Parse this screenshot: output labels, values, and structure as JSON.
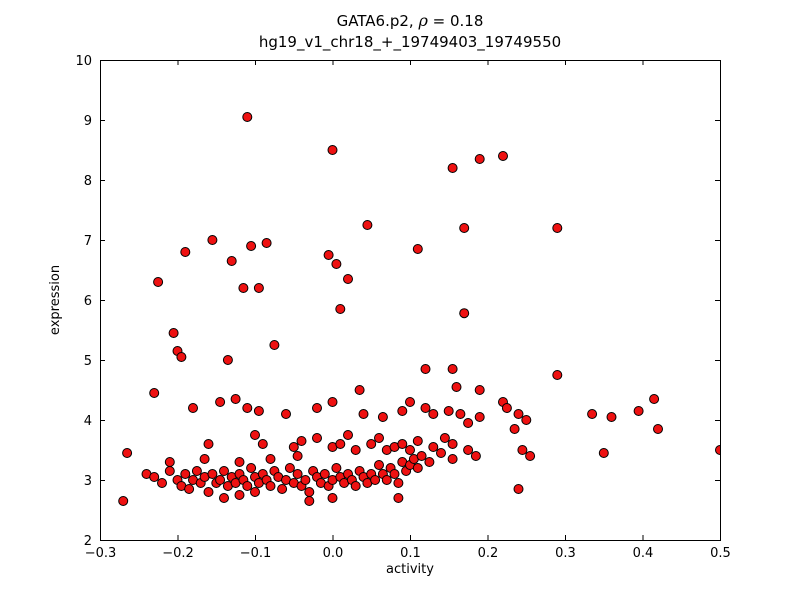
{
  "figure": {
    "background": "#ffffff",
    "axes_edge_color": "#000000"
  },
  "chart_data": {
    "type": "scatter",
    "title": "GATA6.p2, ρ = 0.18",
    "subtitle": "hg19_v1_chr18_+_19749403_19749550",
    "title_parts": {
      "prefix": "GATA6.p2, ",
      "rho": "ρ",
      "suffix": " = 0.18"
    },
    "xlabel": "activity",
    "ylabel": "expression",
    "xlim": [
      -0.3,
      0.5
    ],
    "ylim": [
      2,
      10
    ],
    "xticks": [
      -0.3,
      -0.2,
      -0.1,
      0.0,
      0.1,
      0.2,
      0.3,
      0.4,
      0.5
    ],
    "xtick_labels": [
      "−0.3",
      "−0.2",
      "−0.1",
      "0.0",
      "0.1",
      "0.2",
      "0.3",
      "0.4",
      "0.5"
    ],
    "yticks": [
      2,
      3,
      4,
      5,
      6,
      7,
      8,
      9,
      10
    ],
    "ytick_labels": [
      "2",
      "3",
      "4",
      "5",
      "6",
      "7",
      "8",
      "9",
      "10"
    ],
    "grid": false,
    "legend": null,
    "marker": {
      "shape": "circle",
      "fill": "#ee1111",
      "edge": "#000000",
      "radius": 4.5
    },
    "points": [
      [
        -0.11,
        9.05
      ],
      [
        0.0,
        8.5
      ],
      [
        0.155,
        8.2
      ],
      [
        0.19,
        8.35
      ],
      [
        0.22,
        8.4
      ],
      [
        0.045,
        7.25
      ],
      [
        0.17,
        7.2
      ],
      [
        0.29,
        7.2
      ],
      [
        -0.155,
        7.0
      ],
      [
        -0.085,
        6.95
      ],
      [
        -0.105,
        6.9
      ],
      [
        0.11,
        6.85
      ],
      [
        -0.19,
        6.8
      ],
      [
        -0.005,
        6.75
      ],
      [
        0.005,
        6.6
      ],
      [
        -0.13,
        6.65
      ],
      [
        0.02,
        6.35
      ],
      [
        -0.225,
        6.3
      ],
      [
        -0.115,
        6.2
      ],
      [
        -0.095,
        6.2
      ],
      [
        0.01,
        5.85
      ],
      [
        0.17,
        5.78
      ],
      [
        -0.205,
        5.45
      ],
      [
        -0.075,
        5.25
      ],
      [
        -0.2,
        5.15
      ],
      [
        -0.195,
        5.05
      ],
      [
        -0.135,
        5.0
      ],
      [
        0.12,
        4.85
      ],
      [
        0.155,
        4.85
      ],
      [
        0.29,
        4.75
      ],
      [
        0.035,
        4.5
      ],
      [
        0.16,
        4.55
      ],
      [
        0.19,
        4.5
      ],
      [
        -0.23,
        4.45
      ],
      [
        0.415,
        4.35
      ],
      [
        0.22,
        4.3
      ],
      [
        0.225,
        4.2
      ],
      [
        0.395,
        4.15
      ],
      [
        0.36,
        4.05
      ],
      [
        0.335,
        4.1
      ],
      [
        -0.18,
        4.2
      ],
      [
        -0.145,
        4.3
      ],
      [
        -0.125,
        4.35
      ],
      [
        -0.11,
        4.2
      ],
      [
        -0.095,
        4.15
      ],
      [
        -0.06,
        4.1
      ],
      [
        -0.02,
        4.2
      ],
      [
        0.0,
        4.3
      ],
      [
        0.04,
        4.1
      ],
      [
        0.065,
        4.05
      ],
      [
        0.09,
        4.15
      ],
      [
        0.1,
        4.3
      ],
      [
        0.12,
        4.2
      ],
      [
        0.13,
        4.1
      ],
      [
        0.15,
        4.15
      ],
      [
        0.165,
        4.1
      ],
      [
        0.175,
        3.95
      ],
      [
        0.19,
        4.05
      ],
      [
        0.24,
        4.1
      ],
      [
        0.25,
        4.0
      ],
      [
        0.42,
        3.85
      ],
      [
        -0.265,
        3.45
      ],
      [
        -0.16,
        3.6
      ],
      [
        -0.1,
        3.75
      ],
      [
        -0.09,
        3.6
      ],
      [
        -0.05,
        3.55
      ],
      [
        -0.04,
        3.65
      ],
      [
        -0.02,
        3.7
      ],
      [
        0.0,
        3.55
      ],
      [
        0.01,
        3.6
      ],
      [
        0.02,
        3.75
      ],
      [
        0.03,
        3.5
      ],
      [
        0.05,
        3.6
      ],
      [
        0.06,
        3.7
      ],
      [
        0.07,
        3.5
      ],
      [
        0.08,
        3.55
      ],
      [
        0.09,
        3.6
      ],
      [
        0.1,
        3.5
      ],
      [
        0.11,
        3.65
      ],
      [
        0.13,
        3.55
      ],
      [
        0.145,
        3.7
      ],
      [
        0.155,
        3.6
      ],
      [
        0.175,
        3.5
      ],
      [
        0.235,
        3.85
      ],
      [
        0.245,
        3.5
      ],
      [
        0.255,
        3.4
      ],
      [
        0.35,
        3.45
      ],
      [
        0.5,
        3.5
      ],
      [
        -0.27,
        2.65
      ],
      [
        -0.24,
        3.1
      ],
      [
        -0.23,
        3.05
      ],
      [
        -0.22,
        2.95
      ],
      [
        -0.21,
        3.15
      ],
      [
        -0.2,
        3.0
      ],
      [
        -0.195,
        2.9
      ],
      [
        -0.19,
        3.1
      ],
      [
        -0.185,
        2.85
      ],
      [
        -0.18,
        3.0
      ],
      [
        -0.175,
        3.15
      ],
      [
        -0.17,
        2.95
      ],
      [
        -0.165,
        3.05
      ],
      [
        -0.16,
        2.8
      ],
      [
        -0.155,
        3.1
      ],
      [
        -0.15,
        2.95
      ],
      [
        -0.145,
        3.0
      ],
      [
        -0.14,
        2.7
      ],
      [
        -0.14,
        3.15
      ],
      [
        -0.135,
        2.9
      ],
      [
        -0.13,
        3.05
      ],
      [
        -0.125,
        2.95
      ],
      [
        -0.12,
        3.1
      ],
      [
        -0.12,
        2.75
      ],
      [
        -0.115,
        3.0
      ],
      [
        -0.11,
        2.9
      ],
      [
        -0.105,
        3.2
      ],
      [
        -0.1,
        3.05
      ],
      [
        -0.1,
        2.8
      ],
      [
        -0.095,
        2.95
      ],
      [
        -0.09,
        3.1
      ],
      [
        -0.085,
        3.0
      ],
      [
        -0.08,
        2.9
      ],
      [
        -0.075,
        3.15
      ],
      [
        -0.07,
        3.05
      ],
      [
        -0.065,
        2.85
      ],
      [
        -0.06,
        3.0
      ],
      [
        -0.055,
        3.2
      ],
      [
        -0.05,
        2.95
      ],
      [
        -0.045,
        3.1
      ],
      [
        -0.04,
        2.9
      ],
      [
        -0.035,
        3.0
      ],
      [
        -0.03,
        2.8
      ],
      [
        -0.025,
        3.15
      ],
      [
        -0.02,
        3.05
      ],
      [
        -0.015,
        2.95
      ],
      [
        -0.01,
        3.1
      ],
      [
        -0.005,
        2.9
      ],
      [
        0.0,
        3.0
      ],
      [
        0.005,
        3.2
      ],
      [
        0.01,
        3.05
      ],
      [
        0.015,
        2.95
      ],
      [
        0.02,
        3.1
      ],
      [
        0.025,
        3.0
      ],
      [
        0.03,
        2.9
      ],
      [
        0.035,
        3.15
      ],
      [
        0.04,
        3.05
      ],
      [
        0.045,
        2.95
      ],
      [
        0.05,
        3.1
      ],
      [
        0.055,
        3.0
      ],
      [
        0.06,
        3.25
      ],
      [
        0.065,
        3.1
      ],
      [
        0.07,
        3.0
      ],
      [
        0.075,
        3.2
      ],
      [
        0.08,
        3.1
      ],
      [
        0.085,
        2.95
      ],
      [
        0.09,
        3.3
      ],
      [
        0.095,
        3.15
      ],
      [
        0.1,
        3.25
      ],
      [
        0.105,
        3.35
      ],
      [
        0.11,
        3.2
      ],
      [
        0.115,
        3.4
      ],
      [
        0.125,
        3.3
      ],
      [
        0.085,
        2.7
      ],
      [
        0.0,
        2.7
      ],
      [
        -0.03,
        2.65
      ],
      [
        0.24,
        2.85
      ],
      [
        0.155,
        3.35
      ],
      [
        0.185,
        3.4
      ],
      [
        -0.21,
        3.3
      ],
      [
        -0.165,
        3.35
      ],
      [
        -0.12,
        3.3
      ],
      [
        -0.08,
        3.35
      ],
      [
        -0.045,
        3.4
      ],
      [
        0.14,
        3.45
      ]
    ]
  }
}
